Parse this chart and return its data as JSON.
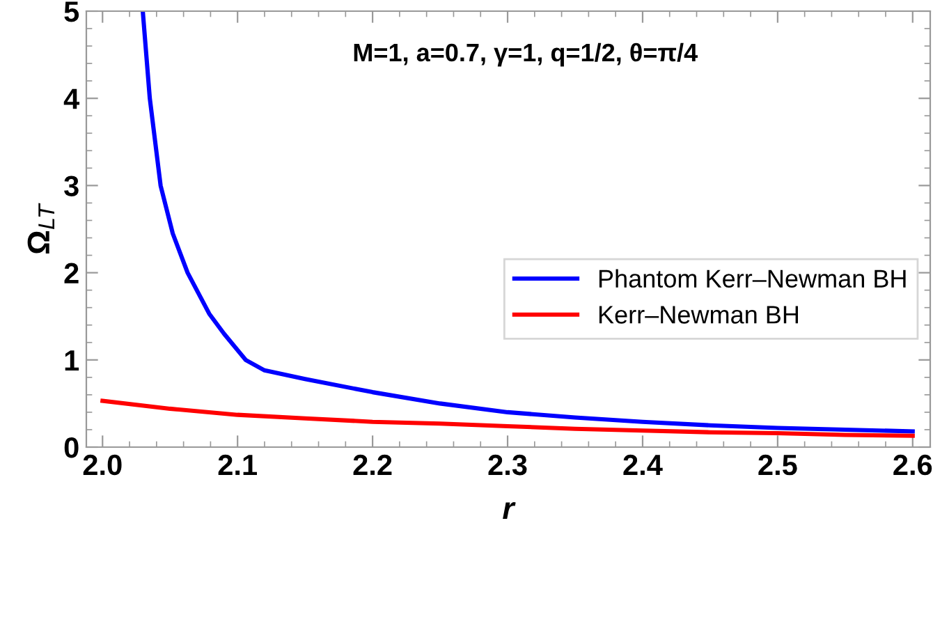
{
  "chart_data": {
    "type": "line",
    "xlabel": "r",
    "ylabel": "Ω$_{LT}$",
    "annotations": [
      "M=1, a=0.7, γ=1, q=1/2, θ=π/4"
    ],
    "xlim": [
      1.988,
      2.613
    ],
    "ylim": [
      0,
      5
    ],
    "xticks": [
      {
        "value": 2.0,
        "label": "2.0"
      },
      2.1,
      2.2,
      2.3,
      2.4,
      2.5,
      2.6
    ],
    "yticks": [
      0,
      1,
      2,
      3,
      4,
      5
    ],
    "grid": false,
    "legend": "right",
    "marker": "none",
    "line_style": "solid",
    "series": [
      {
        "name": "Phantom Kerr–Newman BH",
        "color": "#0000ff",
        "x": [
          2.0298,
          2.035,
          2.043,
          2.052,
          2.063,
          2.079,
          2.09,
          2.106,
          2.12,
          2.15,
          2.2,
          2.25,
          2.3,
          2.35,
          2.4,
          2.45,
          2.5,
          2.55,
          2.6
        ],
        "values": [
          5,
          4,
          3,
          2.45,
          2,
          1.53,
          1.3,
          1,
          0.88,
          0.78,
          0.63,
          0.5,
          0.4,
          0.34,
          0.29,
          0.25,
          0.22,
          0.2,
          0.18
        ]
      },
      {
        "name": "Kerr–Newman BH",
        "color": "#ff0000",
        "x": [
          2.0,
          2.05,
          2.1,
          2.15,
          2.2,
          2.25,
          2.3,
          2.35,
          2.4,
          2.45,
          2.5,
          2.55,
          2.6
        ],
        "values": [
          0.53,
          0.44,
          0.37,
          0.33,
          0.29,
          0.27,
          0.24,
          0.21,
          0.19,
          0.17,
          0.16,
          0.14,
          0.13
        ]
      }
    ]
  }
}
